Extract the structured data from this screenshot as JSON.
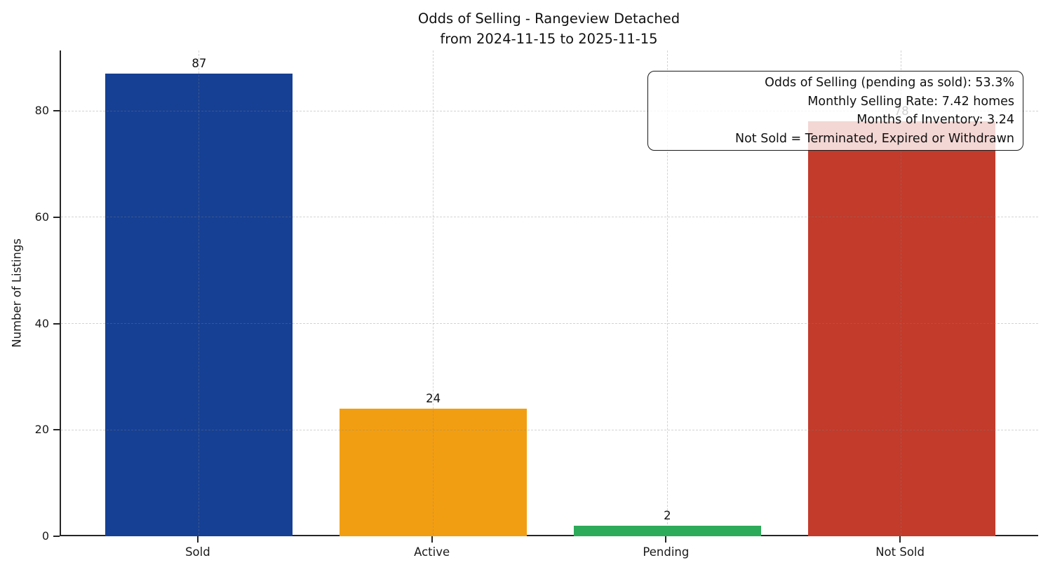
{
  "chart_data": {
    "type": "bar",
    "title": "Odds of Selling - Rangeview Detached",
    "subtitle": "from 2024-11-15 to 2025-11-15",
    "xlabel": "",
    "ylabel": "Number of Listings",
    "categories": [
      "Sold",
      "Active",
      "Pending",
      "Not Sold"
    ],
    "values": [
      87,
      24,
      2,
      78
    ],
    "bar_value_labels": [
      "87",
      "24",
      "2",
      "78"
    ],
    "bar_colors": [
      "#164094",
      "#F29E12",
      "#2DAA5A",
      "#C23B2B"
    ],
    "yticks": [
      0,
      20,
      40,
      60,
      80
    ],
    "ytick_labels": [
      "0",
      "20",
      "40",
      "60",
      "80"
    ],
    "ylim": [
      0,
      91.35
    ],
    "xlim": [
      -0.59,
      3.59
    ],
    "bar_width": 0.8,
    "grid": "dashed gray, horizontal and vertical, drawn above bars",
    "legend_position": "none",
    "annotation_box": {
      "lines": [
        "Odds of Selling (pending as sold): 53.3%",
        "Monthly Selling Rate: 7.42 homes",
        "Months of Inventory: 3.24",
        "Not Sold = Terminated, Expired or Withdrawn"
      ]
    },
    "colors": {
      "background": "#ffffff",
      "axis_spine": "#262626",
      "text": "#111111",
      "gridline": "rgba(130,130,130,0.35)",
      "annotation_border": "#1a1a1a",
      "annotation_background": "rgba(255,255,255,0.8)"
    }
  }
}
